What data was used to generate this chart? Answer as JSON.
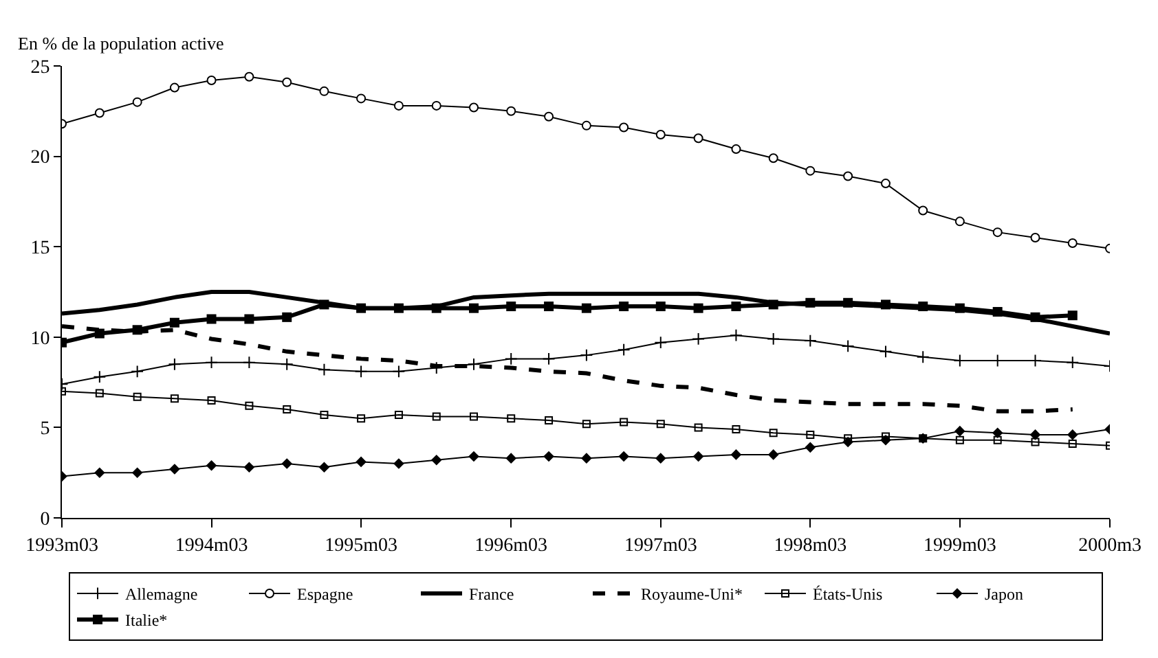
{
  "chart_data": {
    "type": "line",
    "ylabel": "En % de la population active",
    "x": [
      "1993-03",
      "1993-06",
      "1993-09",
      "1993-12",
      "1994-03",
      "1994-06",
      "1994-09",
      "1994-12",
      "1995-03",
      "1995-06",
      "1995-09",
      "1995-12",
      "1996-03",
      "1996-06",
      "1996-09",
      "1996-12",
      "1997-03",
      "1997-06",
      "1997-09",
      "1997-12",
      "1998-03",
      "1998-06",
      "1998-09",
      "1998-12",
      "1999-03",
      "1999-06",
      "1999-09",
      "1999-12",
      "2000-03"
    ],
    "series": [
      {
        "name": "Allemagne",
        "color": "#000000",
        "marker": "cross",
        "line_style": "solid",
        "values": [
          7.4,
          7.8,
          8.1,
          8.5,
          8.6,
          8.6,
          8.5,
          8.2,
          8.1,
          8.1,
          8.3,
          8.5,
          8.8,
          8.8,
          9.0,
          9.3,
          9.7,
          9.9,
          10.1,
          9.9,
          9.8,
          9.5,
          9.2,
          8.9,
          8.7,
          8.7,
          8.7,
          8.6,
          8.4
        ]
      },
      {
        "name": "Espagne",
        "color": "#000000",
        "marker": "circle",
        "line_style": "solid",
        "values": [
          21.8,
          22.4,
          23.0,
          23.8,
          24.2,
          24.4,
          24.1,
          23.6,
          23.2,
          22.8,
          22.8,
          22.7,
          22.5,
          22.2,
          21.7,
          21.6,
          21.2,
          21.0,
          20.4,
          19.9,
          19.2,
          18.9,
          18.5,
          17.0,
          16.4,
          15.8,
          15.5,
          15.2,
          14.9
        ]
      },
      {
        "name": "France",
        "color": "#000000",
        "marker": "none",
        "line_style": "solid",
        "values": [
          11.3,
          11.5,
          11.8,
          12.2,
          12.5,
          12.5,
          12.2,
          11.9,
          11.6,
          11.6,
          11.7,
          12.2,
          12.3,
          12.4,
          12.4,
          12.4,
          12.4,
          12.4,
          12.2,
          11.9,
          11.8,
          11.8,
          11.7,
          11.6,
          11.5,
          11.3,
          11.0,
          10.6,
          10.2
        ]
      },
      {
        "name": "Royaume-Uni*",
        "color": "#000000",
        "marker": "none",
        "line_style": "dashed",
        "values": [
          10.6,
          10.4,
          10.3,
          10.4,
          9.9,
          9.6,
          9.2,
          9.0,
          8.8,
          8.7,
          8.4,
          8.4,
          8.3,
          8.1,
          8.0,
          7.6,
          7.3,
          7.2,
          6.8,
          6.5,
          6.4,
          6.3,
          6.3,
          6.3,
          6.2,
          5.9,
          5.9,
          6.0,
          null
        ]
      },
      {
        "name": "États-Unis",
        "color": "#000000",
        "marker": "square-open",
        "line_style": "solid",
        "values": [
          7.0,
          6.9,
          6.7,
          6.6,
          6.5,
          6.2,
          6.0,
          5.7,
          5.5,
          5.7,
          5.6,
          5.6,
          5.5,
          5.4,
          5.2,
          5.3,
          5.2,
          5.0,
          4.9,
          4.7,
          4.6,
          4.4,
          4.5,
          4.4,
          4.3,
          4.3,
          4.2,
          4.1,
          4.0
        ]
      },
      {
        "name": "Japon",
        "color": "#000000",
        "marker": "diamond",
        "line_style": "solid",
        "values": [
          2.3,
          2.5,
          2.5,
          2.7,
          2.9,
          2.8,
          3.0,
          2.8,
          3.1,
          3.0,
          3.2,
          3.4,
          3.3,
          3.4,
          3.3,
          3.4,
          3.3,
          3.4,
          3.5,
          3.5,
          3.9,
          4.2,
          4.3,
          4.4,
          4.8,
          4.7,
          4.6,
          4.6,
          4.9
        ]
      },
      {
        "name": "Italie*",
        "color": "#000000",
        "marker": "square",
        "line_style": "solid",
        "values": [
          9.7,
          10.2,
          10.4,
          10.8,
          11.0,
          11.0,
          11.1,
          11.8,
          11.6,
          11.6,
          11.6,
          11.6,
          11.7,
          11.7,
          11.6,
          11.7,
          11.7,
          11.6,
          11.7,
          11.8,
          11.9,
          11.9,
          11.8,
          11.7,
          11.6,
          11.4,
          11.1,
          11.2,
          null
        ]
      }
    ],
    "xlim": [
      "1993-03",
      "2000-03"
    ],
    "xticks": [
      {
        "value": "1993-03",
        "label": "1993m03"
      },
      {
        "value": "1994-03",
        "label": "1994m03"
      },
      {
        "value": "1995-03",
        "label": "1995m03"
      },
      {
        "value": "1996-03",
        "label": "1996m03"
      },
      {
        "value": "1997-03",
        "label": "1997m03"
      },
      {
        "value": "1998-03",
        "label": "1998m03"
      },
      {
        "value": "1999-03",
        "label": "1999m03"
      },
      {
        "value": "2000-03",
        "label": "2000m3"
      }
    ],
    "ylim": [
      0,
      25
    ],
    "yticks": [
      0,
      5,
      10,
      15,
      20,
      25
    ],
    "legend": "bottom"
  }
}
